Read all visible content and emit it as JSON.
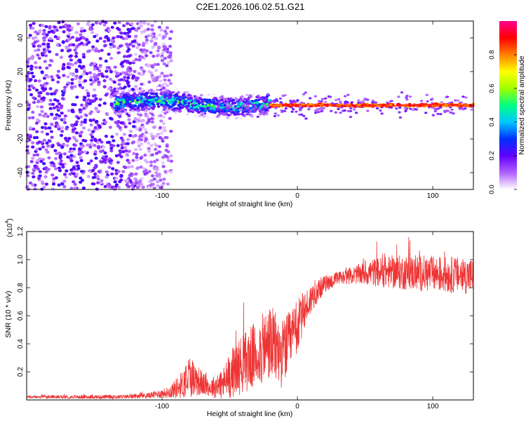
{
  "figure_title": "C2E1.2026.106.02.51.G21",
  "chart_data": [
    {
      "type": "heatmap",
      "title": "C2E1.2026.106.02.51.G21",
      "xlabel": "Height of straight line (km)",
      "ylabel": "Frequency (Hz)",
      "xlim": [
        -200,
        130
      ],
      "ylim": [
        -50,
        50
      ],
      "x_ticks": [
        -100,
        0,
        100
      ],
      "x_tick_labels": [
        "-100",
        "0",
        "100"
      ],
      "y_ticks": [
        -40,
        -20,
        0,
        20,
        40
      ],
      "y_tick_labels": [
        "-40",
        "-20",
        "0",
        "20",
        "40"
      ],
      "colorbar": {
        "label": "Normalized spectral amplitude",
        "range": [
          0,
          1
        ],
        "ticks": [
          0.0,
          0.2,
          0.4,
          0.6,
          0.8
        ],
        "tick_labels": [
          "0.0",
          "0.2",
          "0.4",
          "0.6",
          "0.8"
        ],
        "colors": [
          "#ffffff",
          "#b060ff",
          "#6000ff",
          "#0030ff",
          "#00c8ff",
          "#00ff80",
          "#a0ff00",
          "#ffff00",
          "#ff8000",
          "#ff0000",
          "#ff0090"
        ]
      },
      "regions": [
        {
          "name": "noise",
          "x_range": [
            -200,
            -105
          ],
          "freq_spread_hz": 50,
          "mean_amplitude": 0.12
        },
        {
          "name": "onset",
          "x_range": [
            -135,
            -20
          ],
          "freq_center_hz": 1,
          "freq_spread_hz": 6,
          "mean_amplitude": 0.35
        },
        {
          "name": "locked-signal",
          "x_range": [
            -20,
            130
          ],
          "freq_center_hz": 0,
          "freq_spread_hz": 1.2,
          "mean_amplitude": 0.9
        }
      ]
    },
    {
      "type": "line",
      "xlabel": "Height of straight line (km)",
      "ylabel": "SNR (10 * v/v)",
      "y_multiplier_label": "(x10",
      "y_multiplier_exp": "4",
      "series_color": "#ee3333",
      "xlim": [
        -200,
        130
      ],
      "ylim": [
        0,
        1.2
      ],
      "x_ticks": [
        -100,
        0,
        100
      ],
      "x_tick_labels": [
        "-100",
        "0",
        "100"
      ],
      "y_ticks": [
        0.2,
        0.4,
        0.6,
        0.8,
        1.0,
        1.2
      ],
      "y_tick_labels": [
        "0.2",
        "0.4",
        "0.6",
        "0.8",
        "1.0",
        "1.2"
      ],
      "envelope": {
        "x": [
          -200,
          -130,
          -110,
          -95,
          -85,
          -80,
          -72,
          -65,
          -55,
          -48,
          -40,
          -30,
          -20,
          -12,
          -5,
          0,
          5,
          12,
          20,
          30,
          40,
          55,
          70,
          90,
          110,
          130
        ],
        "mean": [
          0.02,
          0.02,
          0.03,
          0.05,
          0.1,
          0.16,
          0.12,
          0.08,
          0.1,
          0.18,
          0.24,
          0.3,
          0.38,
          0.3,
          0.4,
          0.5,
          0.62,
          0.74,
          0.82,
          0.86,
          0.88,
          0.9,
          0.9,
          0.89,
          0.88,
          0.87
        ],
        "spread": [
          0.01,
          0.015,
          0.02,
          0.04,
          0.1,
          0.16,
          0.1,
          0.06,
          0.12,
          0.18,
          0.22,
          0.24,
          0.28,
          0.24,
          0.22,
          0.2,
          0.14,
          0.1,
          0.06,
          0.05,
          0.06,
          0.1,
          0.12,
          0.13,
          0.13,
          0.13
        ]
      }
    }
  ]
}
